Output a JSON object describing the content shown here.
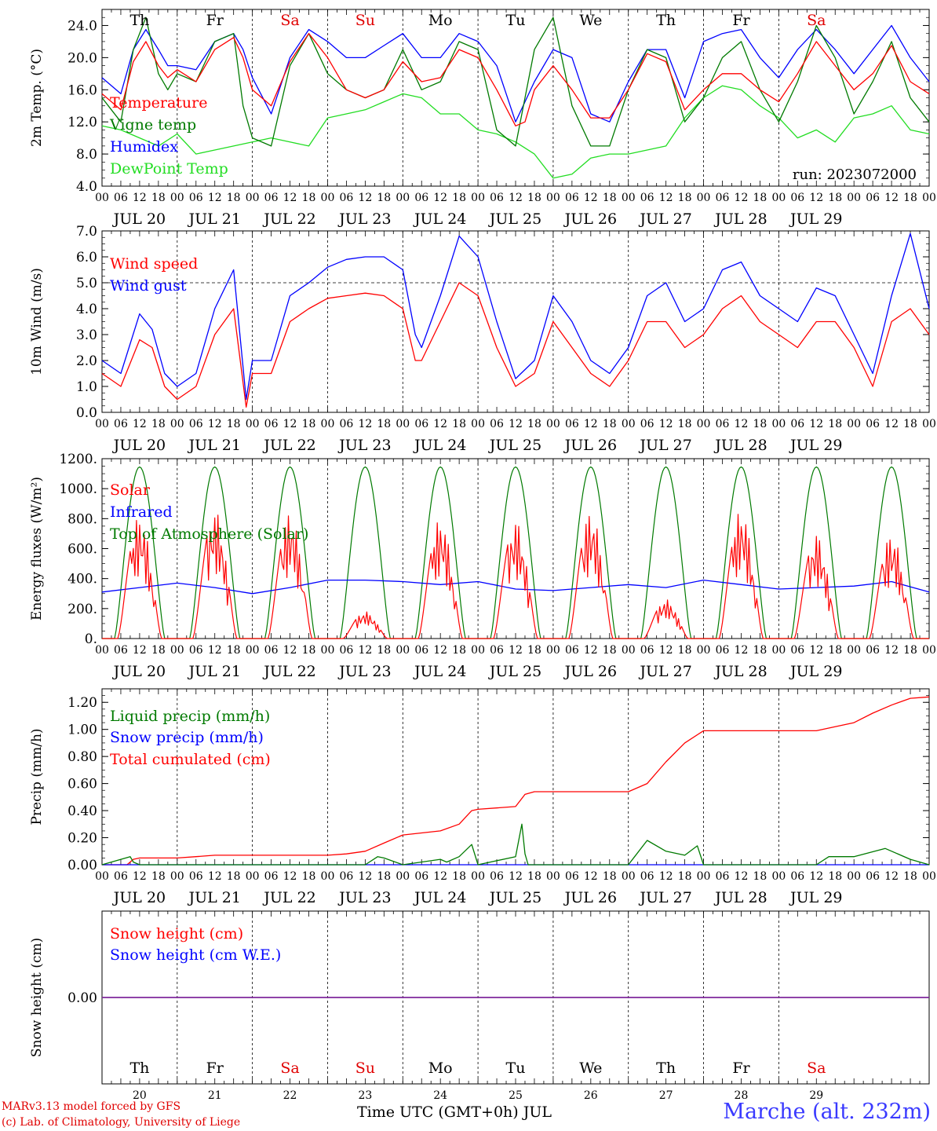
{
  "footer": {
    "model": "MARv3.13 model forced by GFS",
    "copyright": "(c) Lab. of Climatology, University of Liege",
    "xaxis_title": "Time UTC (GMT+0h) JUL",
    "station": "Marche (alt. 232m)"
  },
  "colors": {
    "red": "#ff0000",
    "darkgreen": "#007a00",
    "blue": "#0000ff",
    "lightgreen": "#22dd22",
    "purple": "#7a2aa0"
  },
  "chart_data": [
    {
      "type": "line",
      "ylabel": "2m Temp. (°C)",
      "ylim": [
        4,
        26
      ],
      "yticks": [
        4,
        8,
        12,
        16,
        20,
        24
      ],
      "ytick_labels": [
        "4.0",
        "8.0",
        "12.0",
        "16.0",
        "20.0",
        "24.0"
      ],
      "weekdays": [
        "Th",
        "Fr",
        "Sa",
        "Su",
        "Mo",
        "Tu",
        "We",
        "Th",
        "Fr",
        "Sa"
      ],
      "weekend_days": [
        2,
        3,
        9
      ],
      "run": "run: 2023072000",
      "x_unit": "hours since JUL 20 00 UTC",
      "series": [
        {
          "name": "Temperature",
          "color": "#ff0000",
          "x": [
            0,
            6,
            10,
            14,
            18,
            21,
            24,
            30,
            36,
            42,
            45,
            48,
            54,
            60,
            66,
            72,
            78,
            84,
            90,
            96,
            102,
            108,
            114,
            120,
            126,
            132,
            135,
            138,
            144,
            150,
            156,
            162,
            168,
            174,
            180,
            186,
            192,
            198,
            204,
            210,
            216,
            222,
            228,
            234,
            240,
            246,
            252,
            258,
            264
          ],
          "values": [
            15.5,
            13.5,
            19.5,
            22,
            19,
            17.5,
            18.5,
            17,
            21,
            22.5,
            20,
            16,
            14,
            19.5,
            23,
            20,
            16,
            15,
            16,
            19.5,
            17,
            17.5,
            21,
            20,
            16,
            11.5,
            12,
            16,
            19,
            16,
            12.5,
            12.5,
            16,
            20.5,
            19.5,
            13.5,
            16,
            18,
            18,
            16,
            14.5,
            18,
            22,
            19,
            16,
            18,
            21.5,
            17,
            15.5
          ]
        },
        {
          "name": "Vigne temp",
          "color": "#007a00",
          "x": [
            0,
            6,
            10,
            14,
            18,
            21,
            24,
            30,
            36,
            42,
            45,
            48,
            54,
            60,
            66,
            72,
            78,
            84,
            90,
            96,
            102,
            108,
            114,
            120,
            126,
            132,
            138,
            144,
            150,
            156,
            162,
            168,
            174,
            180,
            186,
            192,
            198,
            204,
            210,
            216,
            222,
            228,
            234,
            240,
            246,
            252,
            258,
            264
          ],
          "values": [
            15,
            12,
            21,
            25,
            18,
            16,
            18,
            17,
            22,
            23,
            14,
            10,
            9,
            19,
            23,
            18,
            16,
            15,
            16,
            21,
            16,
            17,
            22,
            21,
            11,
            9,
            21,
            25,
            14,
            9,
            9,
            16,
            21,
            20,
            12,
            15,
            20,
            22,
            16,
            12,
            17,
            24,
            20,
            13,
            17,
            22,
            15,
            12
          ]
        },
        {
          "name": "Humidex",
          "color": "#0000ff",
          "x": [
            0,
            6,
            10,
            14,
            18,
            21,
            24,
            30,
            36,
            42,
            45,
            48,
            54,
            60,
            66,
            72,
            78,
            84,
            90,
            96,
            102,
            108,
            114,
            120,
            126,
            132,
            138,
            144,
            150,
            156,
            162,
            168,
            174,
            180,
            186,
            192,
            198,
            204,
            210,
            216,
            222,
            228,
            234,
            240,
            246,
            252,
            258,
            264
          ],
          "values": [
            17.5,
            15.5,
            21,
            23.5,
            21,
            19,
            19,
            18.5,
            22,
            23,
            21,
            17.5,
            13,
            20,
            23.5,
            22,
            20,
            20,
            21.5,
            23,
            20,
            20,
            23,
            22,
            19,
            12,
            17,
            21,
            20,
            13,
            12,
            17,
            21,
            21,
            15,
            22,
            23,
            23.5,
            20,
            17.5,
            21,
            23.5,
            21,
            18,
            21,
            24,
            20,
            17
          ]
        },
        {
          "name": "DewPoint Temp",
          "color": "#22dd22",
          "x": [
            0,
            6,
            12,
            18,
            24,
            30,
            36,
            42,
            48,
            54,
            60,
            66,
            72,
            78,
            84,
            90,
            96,
            102,
            108,
            114,
            120,
            126,
            132,
            138,
            144,
            150,
            156,
            162,
            168,
            174,
            180,
            186,
            192,
            198,
            204,
            210,
            216,
            222,
            228,
            234,
            240,
            246,
            252,
            258,
            264
          ],
          "values": [
            11.5,
            11,
            10,
            9,
            10.5,
            8,
            8.5,
            9,
            9.5,
            10,
            9.5,
            9,
            12.5,
            13,
            13.5,
            14.5,
            15.5,
            15,
            13,
            13,
            11,
            10.5,
            9.5,
            8,
            5,
            5.5,
            7.5,
            8,
            8,
            8.5,
            9,
            12.5,
            15,
            16.5,
            16,
            14,
            12.5,
            10,
            11,
            9.5,
            12.5,
            13,
            14,
            11,
            10.5
          ]
        }
      ]
    },
    {
      "type": "line",
      "ylabel": "10m Wind (m/s)",
      "ylim": [
        0,
        7
      ],
      "yticks": [
        0,
        1,
        2,
        3,
        4,
        5,
        6,
        7
      ],
      "ytick_labels": [
        "0.0",
        "1.0",
        "2.0",
        "3.0",
        "4.0",
        "5.0",
        "6.0",
        "7.0"
      ],
      "reference_line": 5,
      "series": [
        {
          "name": "Wind speed",
          "color": "#ff0000",
          "x": [
            0,
            6,
            12,
            16,
            20,
            24,
            30,
            36,
            42,
            46,
            48,
            54,
            60,
            66,
            72,
            78,
            84,
            90,
            96,
            100,
            102,
            108,
            114,
            120,
            126,
            132,
            138,
            144,
            150,
            156,
            162,
            168,
            174,
            180,
            186,
            192,
            198,
            204,
            210,
            216,
            222,
            228,
            234,
            240,
            246,
            252,
            258,
            264
          ],
          "values": [
            1.5,
            1,
            2.8,
            2.5,
            1,
            0.5,
            1,
            3,
            4,
            0.2,
            1.5,
            1.5,
            3.5,
            4,
            4.4,
            4.5,
            4.6,
            4.5,
            4,
            2,
            2,
            3.5,
            5,
            4.5,
            2.5,
            1,
            1.5,
            3.5,
            2.5,
            1.5,
            1,
            2,
            3.5,
            3.5,
            2.5,
            3,
            4,
            4.5,
            3.5,
            3,
            2.5,
            3.5,
            3.5,
            2.5,
            1,
            3.5,
            4,
            3
          ]
        },
        {
          "name": "Wind gust",
          "color": "#0000ff",
          "x": [
            0,
            6,
            12,
            16,
            20,
            24,
            30,
            36,
            42,
            46,
            48,
            54,
            60,
            66,
            72,
            78,
            84,
            90,
            96,
            100,
            102,
            108,
            114,
            120,
            126,
            132,
            138,
            144,
            150,
            156,
            162,
            168,
            174,
            180,
            186,
            192,
            198,
            204,
            210,
            216,
            222,
            228,
            234,
            240,
            246,
            252,
            258,
            264
          ],
          "values": [
            2,
            1.5,
            3.8,
            3.2,
            1.5,
            1,
            1.5,
            4,
            5.5,
            0.5,
            2,
            2,
            4.5,
            5,
            5.6,
            5.9,
            6,
            6,
            5.5,
            3,
            2.5,
            4.5,
            6.8,
            6,
            3.5,
            1.3,
            2,
            4.5,
            3.5,
            2,
            1.5,
            2.5,
            4.5,
            5,
            3.5,
            4,
            5.5,
            5.8,
            4.5,
            4,
            3.5,
            4.8,
            4.5,
            3,
            1.5,
            4.5,
            6.9,
            4
          ]
        }
      ]
    },
    {
      "type": "line",
      "ylabel": "Energy fluxes (W/m²)",
      "ylim": [
        0,
        1200
      ],
      "yticks": [
        0,
        200,
        400,
        600,
        800,
        1000,
        1200
      ],
      "ytick_labels": [
        "0.",
        "200.",
        "400.",
        "600.",
        "800.",
        "1000.",
        "1200."
      ],
      "series": [
        {
          "name": "Solar",
          "color": "#ff0000",
          "day_peaks": [
            820,
            860,
            840,
            180,
            800,
            790,
            850,
            260,
            860,
            700
          ]
        },
        {
          "name": "Infrared",
          "color": "#0000ff",
          "x": [
            0,
            12,
            24,
            36,
            48,
            60,
            72,
            84,
            96,
            108,
            120,
            132,
            144,
            156,
            168,
            180,
            192,
            204,
            216,
            228,
            240,
            252,
            264
          ],
          "values": [
            310,
            340,
            370,
            340,
            300,
            340,
            390,
            390,
            380,
            360,
            380,
            330,
            320,
            340,
            360,
            340,
            390,
            360,
            330,
            340,
            350,
            380,
            310
          ]
        },
        {
          "name": "Top of Atmosphere (Solar)",
          "color": "#007a00",
          "day_peak": 1145
        }
      ]
    },
    {
      "type": "line",
      "ylabel": "Precip (mm/h)",
      "ylim": [
        0,
        1.3
      ],
      "yticks": [
        0,
        0.2,
        0.4,
        0.6,
        0.8,
        1.0,
        1.2
      ],
      "ytick_labels": [
        "0.00",
        "0.20",
        "0.40",
        "0.60",
        "0.80",
        "1.00",
        "1.20"
      ],
      "series": [
        {
          "name": "Liquid precip (mm/h)",
          "color": "#007a00",
          "x": [
            0,
            9,
            10,
            12,
            24,
            84,
            88,
            90,
            96,
            108,
            110,
            114,
            118,
            120,
            132,
            134,
            135,
            136,
            144,
            168,
            170,
            174,
            180,
            186,
            190,
            192,
            228,
            232,
            240,
            250,
            258,
            264
          ],
          "values": [
            0,
            0.06,
            0.02,
            0,
            0,
            0,
            0.06,
            0.05,
            0,
            0.04,
            0.02,
            0.06,
            0.15,
            0,
            0.06,
            0.3,
            0.08,
            0,
            0,
            0,
            0.06,
            0.18,
            0.1,
            0.07,
            0.14,
            0,
            0,
            0.06,
            0.06,
            0.12,
            0.04,
            0
          ]
        },
        {
          "name": "Snow precip (mm/h)",
          "color": "#0000ff",
          "x": [
            0,
            264
          ],
          "values": [
            0,
            0
          ]
        },
        {
          "name": "Total cumulated (cm)",
          "color": "#ff0000",
          "x": [
            0,
            8,
            10,
            12,
            24,
            30,
            36,
            48,
            60,
            72,
            78,
            84,
            90,
            96,
            108,
            114,
            118,
            120,
            132,
            135,
            138,
            168,
            174,
            180,
            186,
            192,
            228,
            234,
            240,
            246,
            252,
            258,
            264
          ],
          "values": [
            0,
            0,
            0.04,
            0.05,
            0.05,
            0.06,
            0.07,
            0.07,
            0.07,
            0.07,
            0.08,
            0.1,
            0.16,
            0.22,
            0.25,
            0.3,
            0.4,
            0.41,
            0.43,
            0.52,
            0.54,
            0.54,
            0.6,
            0.76,
            0.9,
            0.99,
            0.99,
            1.02,
            1.05,
            1.12,
            1.18,
            1.23,
            1.24
          ]
        }
      ]
    },
    {
      "type": "line",
      "ylabel": "Snow height (cm)",
      "ylim": [
        -1,
        1
      ],
      "yticks": [
        0
      ],
      "ytick_labels": [
        "0.00"
      ],
      "series": [
        {
          "name": "Snow height (cm)",
          "color": "#ff0000",
          "x": [
            0,
            264
          ],
          "values": [
            0,
            0
          ]
        },
        {
          "name": "Snow height (cm W.E.)",
          "color": "#0000ff",
          "x": [
            0,
            264
          ],
          "values": [
            0,
            0
          ]
        }
      ],
      "day_numbers": [
        "20",
        "21",
        "22",
        "23",
        "24",
        "25",
        "26",
        "27",
        "28",
        "29"
      ]
    }
  ],
  "x_axis": {
    "hour_labels": [
      "00",
      "06",
      "12",
      "18"
    ],
    "final_label": "00",
    "day_labels": [
      "JUL 20",
      "JUL 21",
      "JUL 22",
      "JUL 23",
      "JUL 24",
      "JUL 25",
      "JUL 26",
      "JUL 27",
      "JUL 28",
      "JUL 29"
    ]
  }
}
